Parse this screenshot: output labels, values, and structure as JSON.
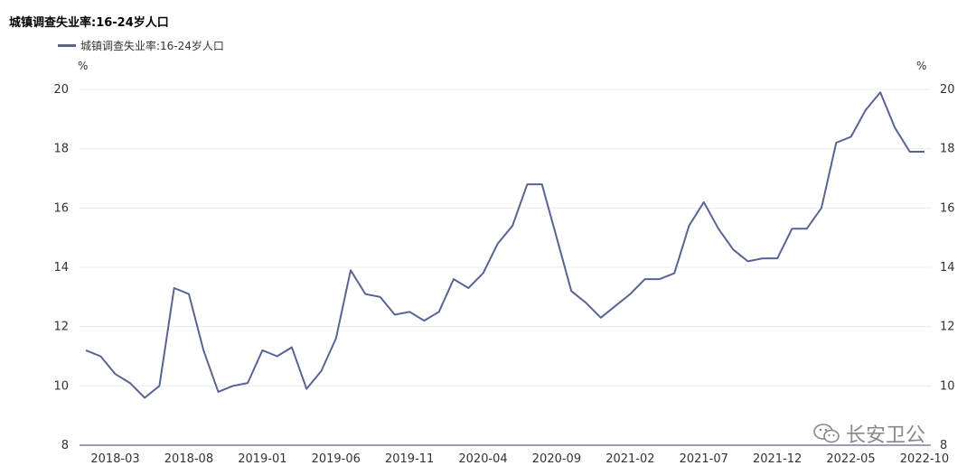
{
  "chart_data": {
    "type": "line",
    "title": "城镇调查失业率:16-24岁人口",
    "xlabel": "",
    "ylabel": "%",
    "ylabel_right": "%",
    "ylim": [
      8,
      20
    ],
    "yticks": [
      8,
      10,
      12,
      14,
      16,
      18,
      20
    ],
    "xtick_labels": [
      "2018-03",
      "2018-08",
      "2019-01",
      "2019-06",
      "2019-11",
      "2020-04",
      "2020-09",
      "2021-02",
      "2021-07",
      "2021-12",
      "2022-05",
      "2022-10"
    ],
    "grid": true,
    "legend_position": "top-left",
    "series": [
      {
        "name": "城镇调查失业率:16-24岁人口",
        "color": "#5a6493",
        "x": [
          "2018-01",
          "2018-02",
          "2018-03",
          "2018-04",
          "2018-05",
          "2018-06",
          "2018-07",
          "2018-08",
          "2018-09",
          "2018-10",
          "2018-11",
          "2018-12",
          "2019-01",
          "2019-02",
          "2019-03",
          "2019-04",
          "2019-05",
          "2019-06",
          "2019-07",
          "2019-08",
          "2019-09",
          "2019-10",
          "2019-11",
          "2019-12",
          "2020-01",
          "2020-02",
          "2020-03",
          "2020-04",
          "2020-05",
          "2020-06",
          "2020-07",
          "2020-08",
          "2020-09",
          "2020-10",
          "2020-11",
          "2020-12",
          "2021-01",
          "2021-02",
          "2021-03",
          "2021-04",
          "2021-05",
          "2021-06",
          "2021-07",
          "2021-08",
          "2021-09",
          "2021-10",
          "2021-11",
          "2021-12",
          "2022-01",
          "2022-02",
          "2022-03",
          "2022-04",
          "2022-05",
          "2022-06",
          "2022-07",
          "2022-08",
          "2022-09",
          "2022-10"
        ],
        "values": [
          11.2,
          11.0,
          10.4,
          10.1,
          9.6,
          10.0,
          13.3,
          13.1,
          11.2,
          9.8,
          10.0,
          10.1,
          11.2,
          11.0,
          11.3,
          9.9,
          10.5,
          11.6,
          13.9,
          13.1,
          13.0,
          12.4,
          12.5,
          12.2,
          12.5,
          13.6,
          13.3,
          13.8,
          14.8,
          15.4,
          16.8,
          16.8,
          15.0,
          13.2,
          12.8,
          12.3,
          12.7,
          13.1,
          13.6,
          13.6,
          13.8,
          15.4,
          16.2,
          15.3,
          14.6,
          14.2,
          14.3,
          14.3,
          15.3,
          15.3,
          16.0,
          18.2,
          18.4,
          19.3,
          19.9,
          18.7,
          17.9,
          17.9
        ]
      }
    ]
  },
  "watermark": {
    "text": "长安卫公",
    "icon": "wechat-icon"
  }
}
